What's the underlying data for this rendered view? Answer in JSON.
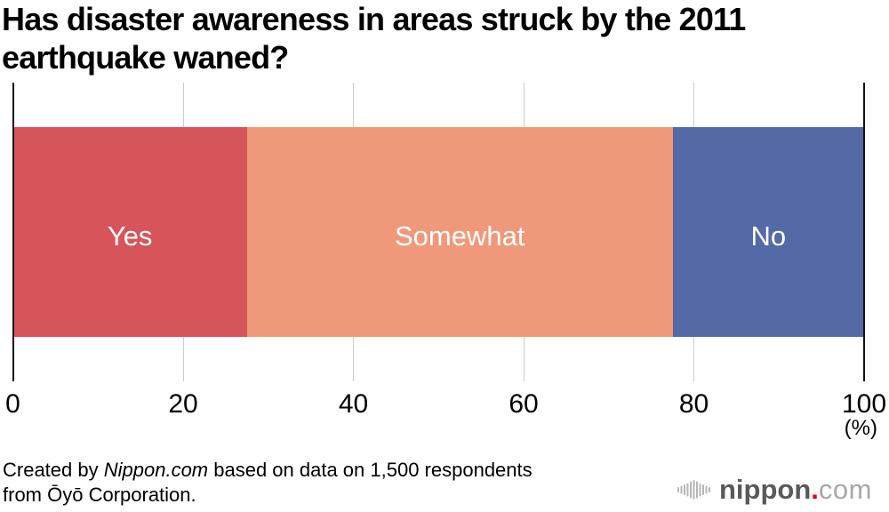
{
  "title": {
    "line1": "Has disaster awareness in areas struck by the 2011",
    "line2": "earthquake waned?"
  },
  "chart_data": {
    "type": "bar",
    "orientation": "horizontal-stacked",
    "title": "Has disaster awareness in areas struck by the 2011 earthquake waned?",
    "title_lines": [
      "Has disaster awareness in areas struck by the 2011",
      "earthquake waned?"
    ],
    "categories": [
      "Yes",
      "Somewhat",
      "No"
    ],
    "values": [
      27.5,
      50.0,
      22.5
    ],
    "segments": [
      {
        "label": "Yes",
        "value": 27.5,
        "color": "#d5555a"
      },
      {
        "label": "Somewhat",
        "value": 50.0,
        "color": "#f0997a"
      },
      {
        "label": "No",
        "value": 22.5,
        "color": "#5569a6"
      }
    ],
    "x_ticks": [
      0,
      20,
      40,
      60,
      80,
      100
    ],
    "x_range": [
      0,
      100
    ],
    "unit_label": "(%)",
    "grid": "vertical-ticks",
    "bar_label_color": "#ffffff",
    "gridline_color": "#cccccc",
    "axis_color": "#111111"
  },
  "footer": {
    "created_prefix": "Created by ",
    "brand": "Nippon.com",
    "line1_suffix": " based on data on 1,500 respondents",
    "line2": "from Ōyō Corporation."
  },
  "logo": {
    "icon": "soundwave-bars-icon",
    "name": "nippon",
    "dot": ".",
    "tld": "com",
    "colors": {
      "name": "#58595b",
      "dot": "#e60012",
      "tld": "#a6a8ab",
      "icon": "#b5b5b5"
    }
  }
}
